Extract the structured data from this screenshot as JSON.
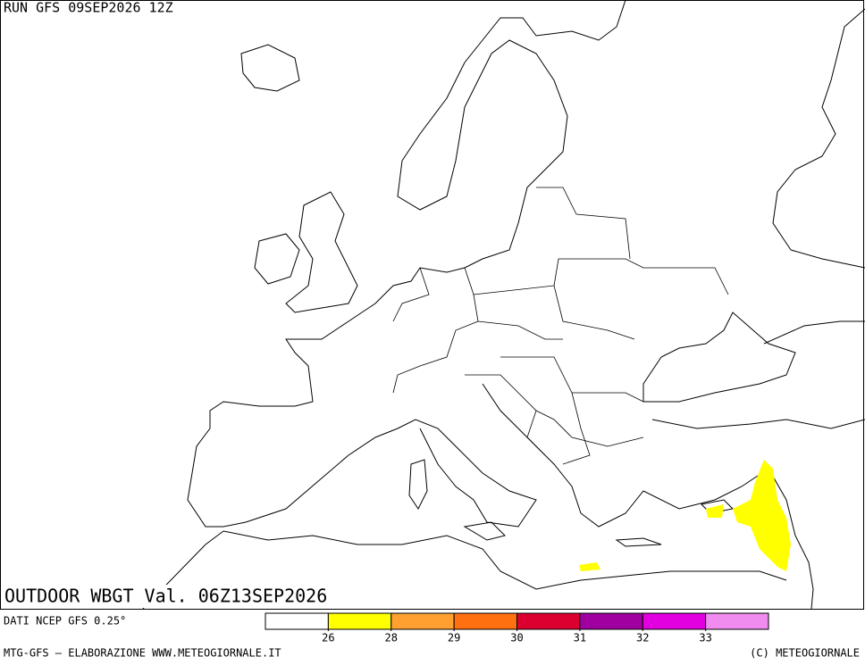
{
  "header": {
    "run": "RUN GFS 09SEP2026 12Z"
  },
  "map": {
    "title": "OUTDOOR WBGT Val. 06Z13SEP2026"
  },
  "legend": {
    "colors": [
      "#ffffff",
      "#ffff00",
      "#ffa030",
      "#ff7010",
      "#dc0030",
      "#a000a0",
      "#e000e0",
      "#f08cf0"
    ],
    "ticks": [
      26,
      28,
      29,
      30,
      31,
      32,
      33
    ]
  },
  "footer": {
    "source": "DATI NCEP GFS 0.25°",
    "credit": "MTG-GFS — ELABORAZIONE WWW.METEOGIORNALE.IT",
    "copyright": "(C) METEOGIORNALE"
  }
}
